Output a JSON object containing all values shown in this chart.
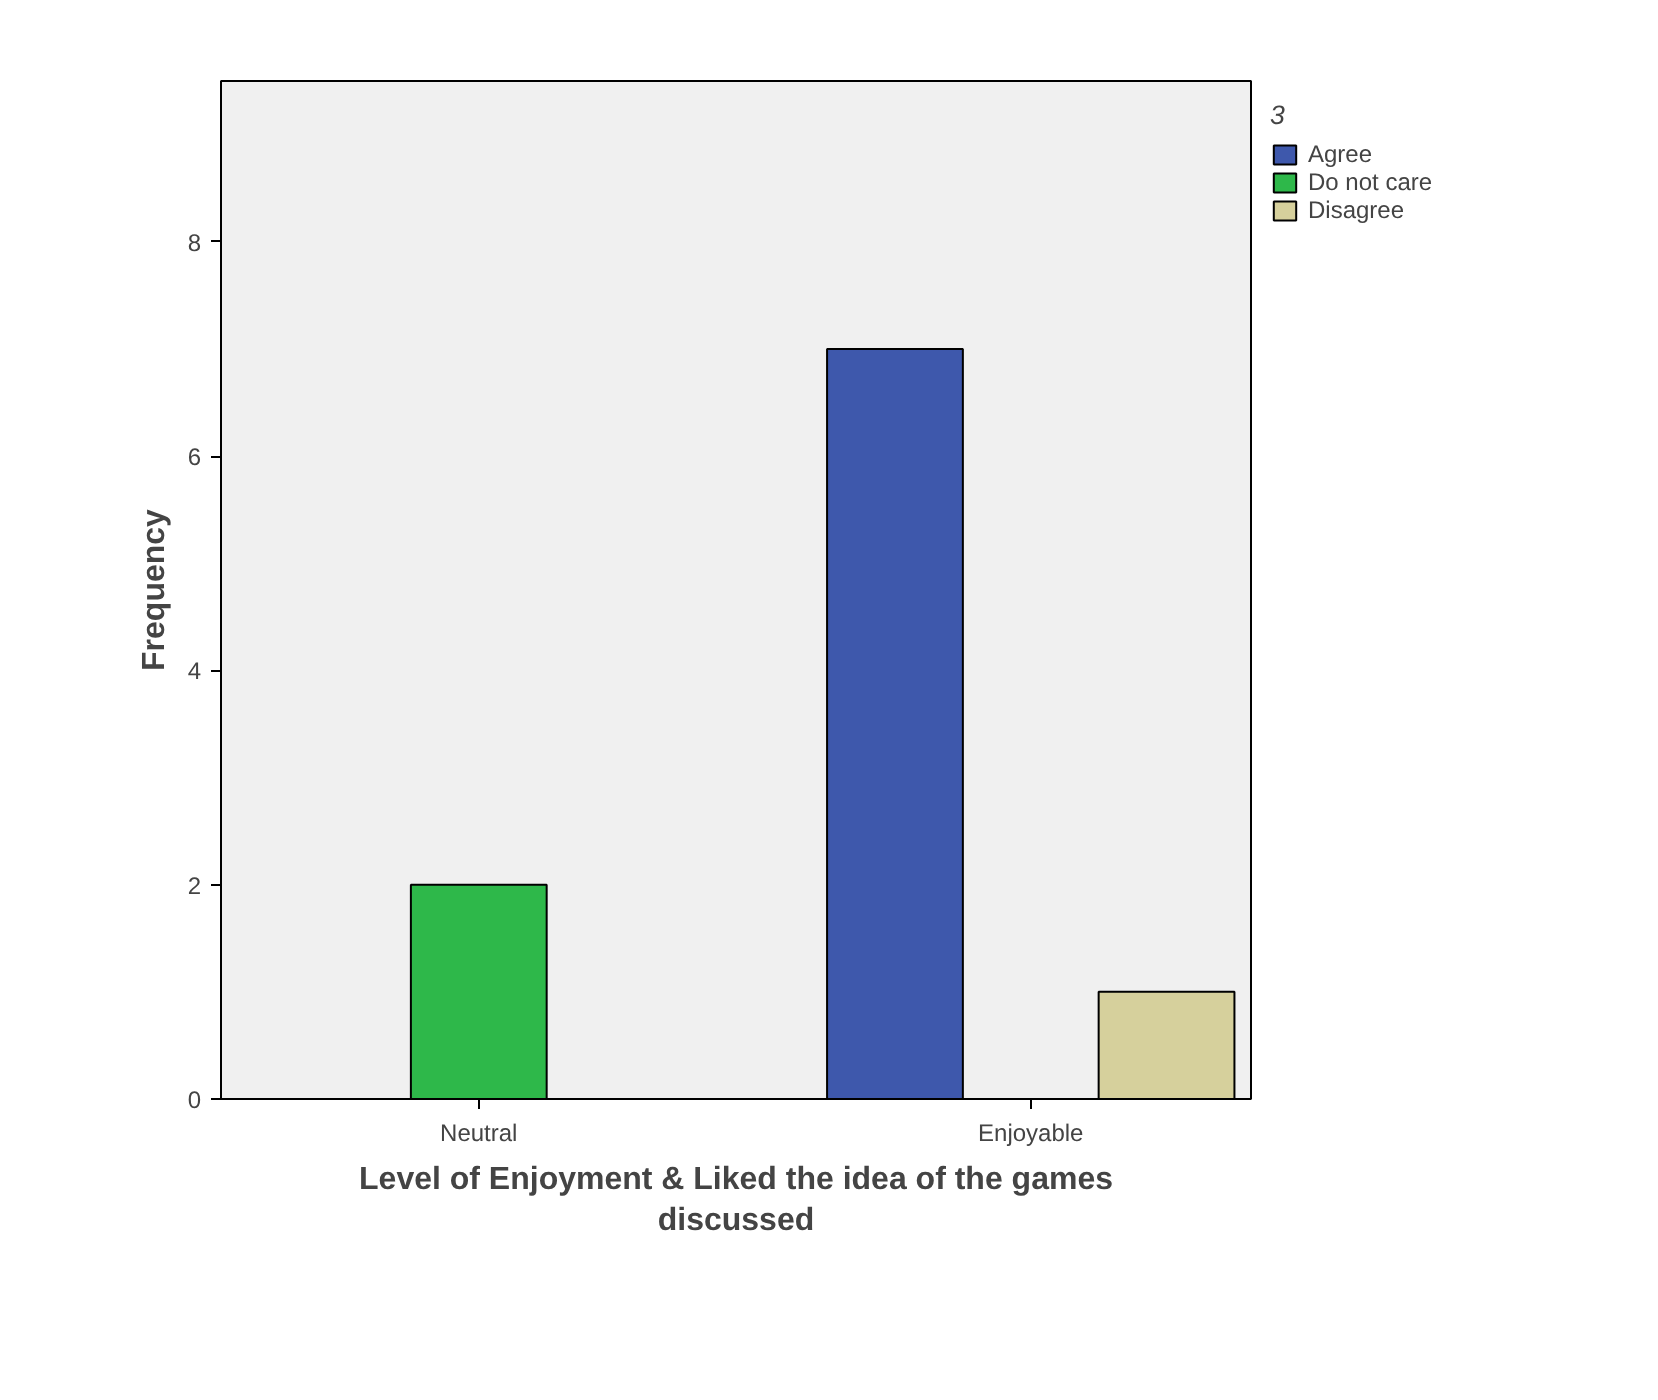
{
  "chart_data": {
    "type": "bar",
    "xlabel": "Level of Enjoyment & Liked the idea of the games\ndiscussed",
    "ylabel": "Frequency",
    "legend_title": "3",
    "categories": [
      "Neutral",
      "Enjoyable"
    ],
    "series": [
      {
        "name": "Agree",
        "color": "#3e58ac",
        "values": [
          null,
          7
        ]
      },
      {
        "name": "Do not care",
        "color": "#2eb84a",
        "values": [
          2,
          null
        ]
      },
      {
        "name": "Disagree",
        "color": "#d6d09c",
        "values": [
          null,
          1
        ]
      }
    ],
    "ylim": [
      0,
      9.5
    ],
    "yticks": [
      0,
      2,
      4,
      6,
      8
    ],
    "grid": false,
    "legend": "top right"
  }
}
